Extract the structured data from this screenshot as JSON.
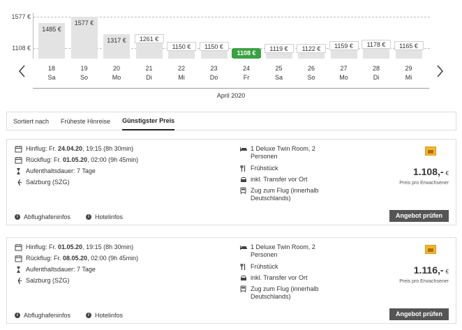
{
  "calendar": {
    "y_axis": {
      "max_label": "1577 €",
      "min_label": "1108 €"
    },
    "days": [
      {
        "date": "18",
        "weekday": "Sa",
        "price": 1485,
        "price_label": "1485 €"
      },
      {
        "date": "19",
        "weekday": "So",
        "price": 1577,
        "price_label": "1577 €"
      },
      {
        "date": "20",
        "weekday": "Mo",
        "price": 1317,
        "price_label": "1317 €"
      },
      {
        "date": "21",
        "weekday": "Di",
        "price": 1261,
        "price_label": "1261 €"
      },
      {
        "date": "22",
        "weekday": "Mi",
        "price": 1150,
        "price_label": "1150 €"
      },
      {
        "date": "23",
        "weekday": "Do",
        "price": 1150,
        "price_label": "1150 €"
      },
      {
        "date": "24",
        "weekday": "Fr",
        "price": 1108,
        "price_label": "1108 €",
        "selected": true
      },
      {
        "date": "25",
        "weekday": "Sa",
        "price": 1119,
        "price_label": "1119 €"
      },
      {
        "date": "26",
        "weekday": "So",
        "price": 1122,
        "price_label": "1122 €"
      },
      {
        "date": "27",
        "weekday": "Mo",
        "price": 1159,
        "price_label": "1159 €"
      },
      {
        "date": "28",
        "weekday": "Di",
        "price": 1178,
        "price_label": "1178 €"
      },
      {
        "date": "29",
        "weekday": "Mi",
        "price": 1165,
        "price_label": "1165 €"
      }
    ],
    "month_label": "April 2020",
    "accent_color": "#3aa142"
  },
  "sort": {
    "label": "Sortiert nach",
    "options": [
      {
        "label": "Früheste Hinreise",
        "active": false
      },
      {
        "label": "Günstigster Preis",
        "active": true
      }
    ]
  },
  "offers": [
    {
      "outbound_prefix": "Hinflug: Fr. ",
      "outbound_date": "24.04.20",
      "outbound_suffix": ", 19:15 (8h 30min)",
      "return_prefix": "Rückflug: Fr. ",
      "return_date": "01.05.20",
      "return_suffix": ", 02:00 (9h 45min)",
      "stay": "Aufenthaltsdauer: 7 Tage",
      "airport": "Salzburg (SZG)",
      "room": "1 Deluxe Twin Room, 2 Personen",
      "board": "Frühstück",
      "transfer": "inkl. Transfer vor Ort",
      "train": "Zug zum Flug (innerhalb Deutschlands)",
      "price": "1.108,-",
      "currency": "€",
      "price_note": "Preis pro Erwachsener",
      "airport_info": "Abflughafeninfos",
      "hotel_info": "Hotelinfos",
      "button": "Angebot prüfen"
    },
    {
      "outbound_prefix": "Hinflug: Fr. ",
      "outbound_date": "01.05.20",
      "outbound_suffix": ", 19:15 (8h 30min)",
      "return_prefix": "Rückflug: Fr. ",
      "return_date": "08.05.20",
      "return_suffix": ", 02:00 (9h 45min)",
      "stay": "Aufenthaltsdauer: 7 Tage",
      "airport": "Salzburg (SZG)",
      "room": "1 Deluxe Twin Room, 2 Personen",
      "board": "Frühstück",
      "transfer": "inkl. Transfer vor Ort",
      "train": "Zug zum Flug (innerhalb Deutschlands)",
      "price": "1.116,-",
      "currency": "€",
      "price_note": "Preis pro Erwachsener",
      "airport_info": "Abflughafeninfos",
      "hotel_info": "Hotelinfos",
      "button": "Angebot prüfen"
    }
  ]
}
